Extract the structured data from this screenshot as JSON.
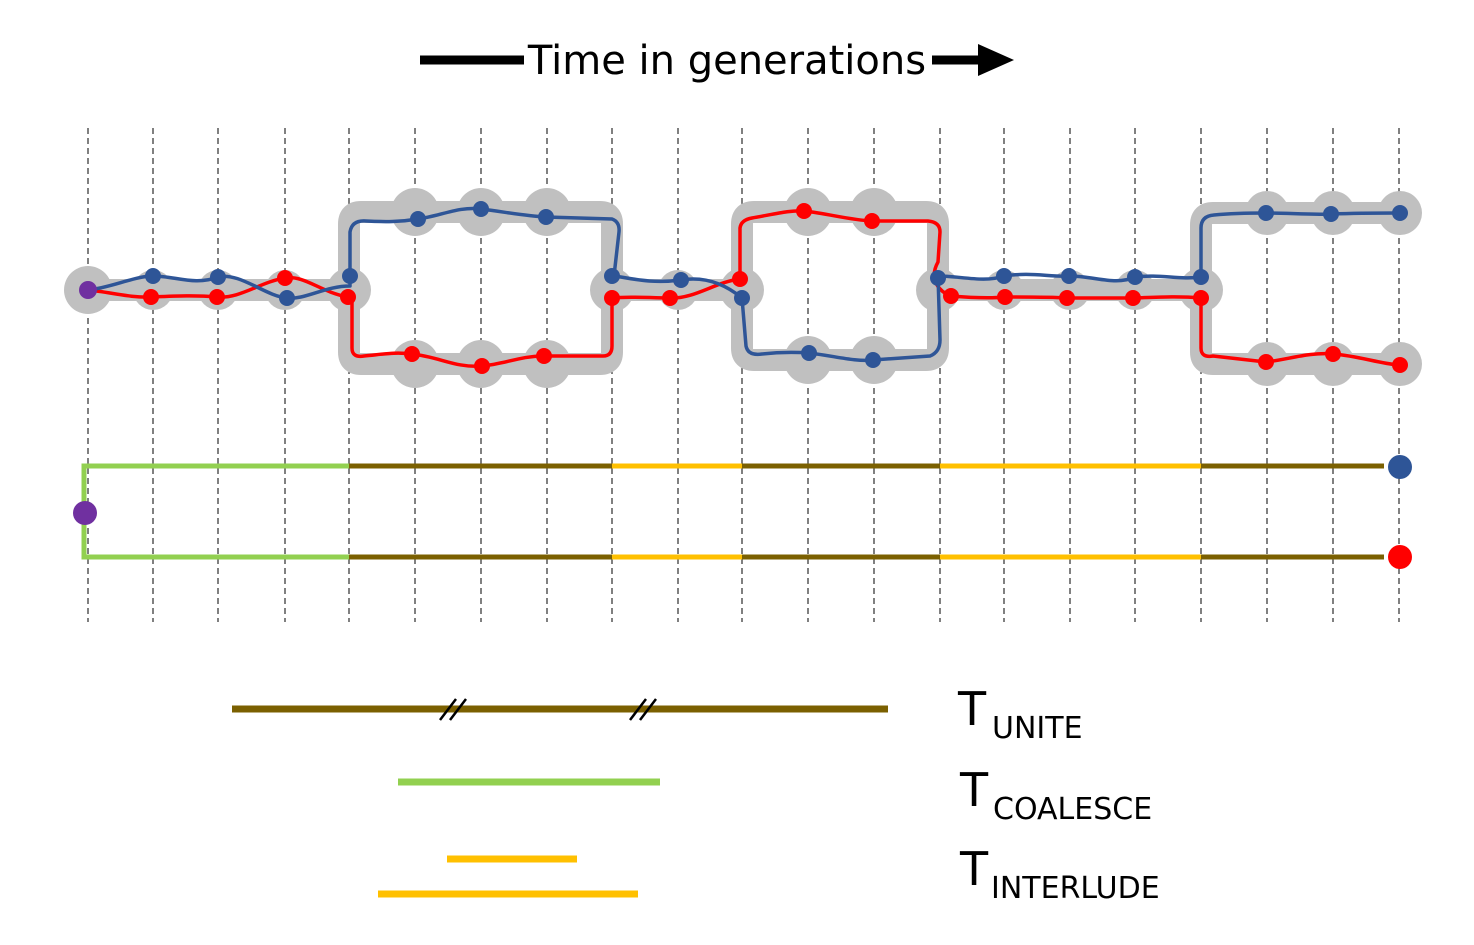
{
  "header": {
    "title": "Time in generations",
    "arrow_icon": "right-arrow-icon"
  },
  "colors": {
    "blue_lineage": "#2e5597",
    "red_lineage": "#ff0000",
    "ancestor": "#7030a0",
    "population_band": "#c0c0c0",
    "unite_phase": "#7b6000",
    "coalesce_phase": "#92d050",
    "interlude_phase": "#ffc000",
    "grid": "#000000"
  },
  "legend": [
    {
      "main": "T",
      "sub": "UNITE",
      "color_key": "unite_phase"
    },
    {
      "main": "T",
      "sub": "COALESCE",
      "color_key": "coalesce_phase"
    },
    {
      "main": "T",
      "sub": "INTERLUDE",
      "color_key": "interlude_phase"
    }
  ]
}
